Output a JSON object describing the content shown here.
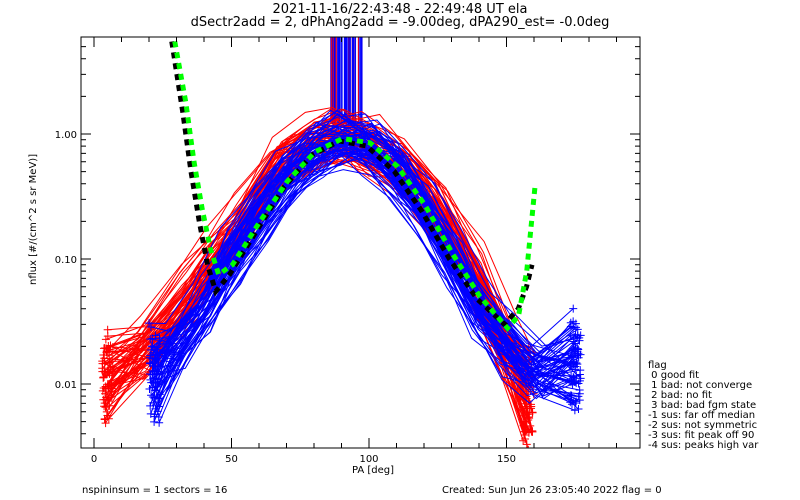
{
  "chart_data": {
    "type": "line",
    "title": "2021-11-16/22:43:48 - 22:49:48 UT ela",
    "subtitle": "dSectr2add = 2, dPhAng2add = -9.00deg, dPA290_est=  -0.0deg",
    "xlabel": "PA [deg]",
    "ylabel": "nflux [#/(cm^2 s sr MeV)]",
    "xlim": [
      -5,
      198
    ],
    "ylim": [
      0.0031,
      6.0
    ],
    "yscale": "log",
    "x_ticks": [
      0,
      50,
      100,
      150
    ],
    "x_tick_labels": [
      "0",
      "50",
      "100",
      "150"
    ],
    "y_ticks": [
      0.01,
      0.1,
      1.0
    ],
    "y_tick_labels": [
      "0.01",
      "0.10",
      "1.00"
    ],
    "grid": false,
    "series": [
      {
        "name": "red spectra (many spins)",
        "color": "#ff0000",
        "marker": "+",
        "x": [
          5,
          20,
          35,
          45,
          55,
          68,
          80,
          90,
          100,
          112,
          125,
          138,
          150,
          158
        ],
        "y": [
          0.012,
          0.02,
          0.05,
          0.1,
          0.2,
          0.55,
          0.85,
          1.0,
          0.85,
          0.55,
          0.25,
          0.08,
          0.02,
          0.008
        ]
      },
      {
        "name": "blue spectra (many spins)",
        "color": "#0000ff",
        "marker": "+",
        "x": [
          22,
          30,
          40,
          50,
          60,
          70,
          80,
          90,
          100,
          110,
          120,
          130,
          140,
          150,
          160,
          175
        ],
        "y": [
          0.012,
          0.02,
          0.04,
          0.1,
          0.22,
          0.45,
          0.75,
          0.9,
          0.8,
          0.5,
          0.25,
          0.1,
          0.04,
          0.02,
          0.012,
          0.015
        ]
      },
      {
        "name": "black dashed fit",
        "color": "#000000",
        "style": "dashed",
        "x": [
          29,
          33,
          36,
          39,
          42,
          45,
          50,
          60,
          70,
          80,
          90,
          100,
          110,
          120,
          130,
          140,
          150,
          155,
          158,
          160
        ],
        "y": [
          5.5,
          1.5,
          0.5,
          0.2,
          0.09,
          0.055,
          0.075,
          0.17,
          0.38,
          0.68,
          0.88,
          0.8,
          0.5,
          0.24,
          0.1,
          0.048,
          0.03,
          0.04,
          0.06,
          0.09
        ]
      },
      {
        "name": "green dashed fit",
        "color": "#00ff00",
        "style": "dashed",
        "x": [
          29,
          33,
          36,
          39,
          42,
          45,
          50,
          60,
          70,
          80,
          90,
          100,
          110,
          120,
          130,
          140,
          150,
          154,
          157,
          160
        ],
        "y": [
          5.5,
          1.8,
          0.6,
          0.25,
          0.12,
          0.075,
          0.09,
          0.2,
          0.42,
          0.72,
          0.92,
          0.85,
          0.55,
          0.27,
          0.11,
          0.05,
          0.028,
          0.035,
          0.08,
          0.38
        ]
      }
    ],
    "annotations": [
      "vertical red/blue bars near PA 85-97 extending above 1.2"
    ],
    "legend": {
      "placement": "right",
      "title": "flag",
      "entries": [
        " 0 good fit",
        " 1 bad: not converge",
        " 2 bad: no fit",
        " 3 bad: bad fgm state",
        "-1 sus: far off median",
        "-2 sus: not symmetric",
        "-3 sus: fit peak off 90",
        "-4 sus: peaks high var"
      ]
    }
  },
  "footer": {
    "left": "nspininsum =  1  sectors = 16",
    "right": "Created: Sun Jun 26 23:05:40 2022   flag = 0"
  }
}
